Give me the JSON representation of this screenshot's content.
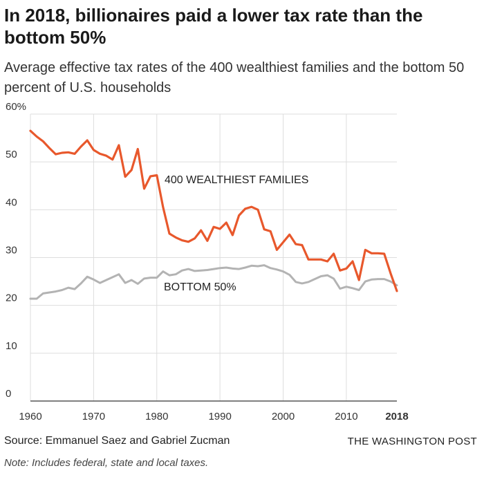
{
  "header": {
    "title": "In 2018, billionaires paid a lower tax rate than the bottom 50%",
    "subtitle": "Average effective tax rates of the 400 wealthiest families and the bottom 50 percent of U.S. households"
  },
  "footer": {
    "source": "Source: Emmanuel Saez and Gabriel Zucman",
    "credit": "THE WASHINGTON POST",
    "note": "Note: Includes federal, state and local taxes."
  },
  "chart_data": {
    "type": "line",
    "title": "In 2018, billionaires paid a lower tax rate than the bottom 50%",
    "subtitle": "Average effective tax rates of the 400 wealthiest families and the bottom 50 percent of U.S. households",
    "xlabel": "",
    "ylabel": "",
    "xlim": [
      1960,
      2018
    ],
    "ylim": [
      0,
      60
    ],
    "x_ticks": [
      "1960",
      "1970",
      "1980",
      "1990",
      "2000",
      "2010",
      "2018"
    ],
    "y_ticks": [
      "60%",
      "50",
      "40",
      "30",
      "20",
      "10",
      "0"
    ],
    "grid": "vertical and horizontal",
    "legend": "direct labels on lines",
    "x": [
      1960,
      1961,
      1962,
      1963,
      1964,
      1965,
      1966,
      1967,
      1968,
      1969,
      1970,
      1971,
      1972,
      1973,
      1974,
      1975,
      1976,
      1977,
      1978,
      1979,
      1980,
      1981,
      1982,
      1983,
      1984,
      1985,
      1986,
      1987,
      1988,
      1989,
      1990,
      1991,
      1992,
      1993,
      1994,
      1995,
      1996,
      1997,
      1998,
      1999,
      2000,
      2001,
      2002,
      2003,
      2004,
      2005,
      2006,
      2007,
      2008,
      2009,
      2010,
      2011,
      2012,
      2013,
      2014,
      2015,
      2016,
      2017,
      2018
    ],
    "series": [
      {
        "name": "400 WEALTHIEST FAMILIES",
        "color": "#e8582c",
        "values": [
          56.5,
          55.3,
          54.3,
          52.9,
          51.6,
          51.9,
          52.0,
          51.7,
          53.2,
          54.5,
          52.5,
          51.7,
          51.3,
          50.5,
          53.5,
          46.9,
          48.3,
          52.7,
          44.4,
          47.0,
          47.2,
          40.5,
          35.0,
          34.2,
          33.6,
          33.3,
          34.0,
          35.7,
          33.5,
          36.4,
          36.0,
          37.3,
          34.7,
          38.8,
          40.2,
          40.6,
          40.0,
          35.9,
          35.5,
          31.6,
          33.2,
          34.8,
          32.8,
          32.6,
          29.6,
          29.6,
          29.6,
          29.2,
          30.8,
          27.3,
          27.7,
          29.2,
          25.3,
          31.6,
          30.9,
          30.9,
          30.8,
          26.7,
          23.0
        ]
      },
      {
        "name": "BOTTOM 50%",
        "color": "#b3b3b3",
        "values": [
          21.4,
          21.4,
          22.5,
          22.7,
          22.9,
          23.2,
          23.7,
          23.4,
          24.6,
          26.0,
          25.4,
          24.7,
          25.3,
          25.9,
          26.5,
          24.7,
          25.3,
          24.5,
          25.6,
          25.8,
          25.8,
          27.1,
          26.3,
          26.5,
          27.3,
          27.6,
          27.2,
          27.3,
          27.4,
          27.6,
          27.8,
          27.9,
          27.7,
          27.6,
          27.9,
          28.3,
          28.2,
          28.4,
          27.8,
          27.5,
          27.1,
          26.4,
          24.9,
          24.6,
          24.9,
          25.5,
          26.1,
          26.3,
          25.6,
          23.5,
          23.9,
          23.6,
          23.2,
          25.0,
          25.4,
          25.5,
          25.5,
          25.0,
          24.2
        ]
      }
    ]
  }
}
